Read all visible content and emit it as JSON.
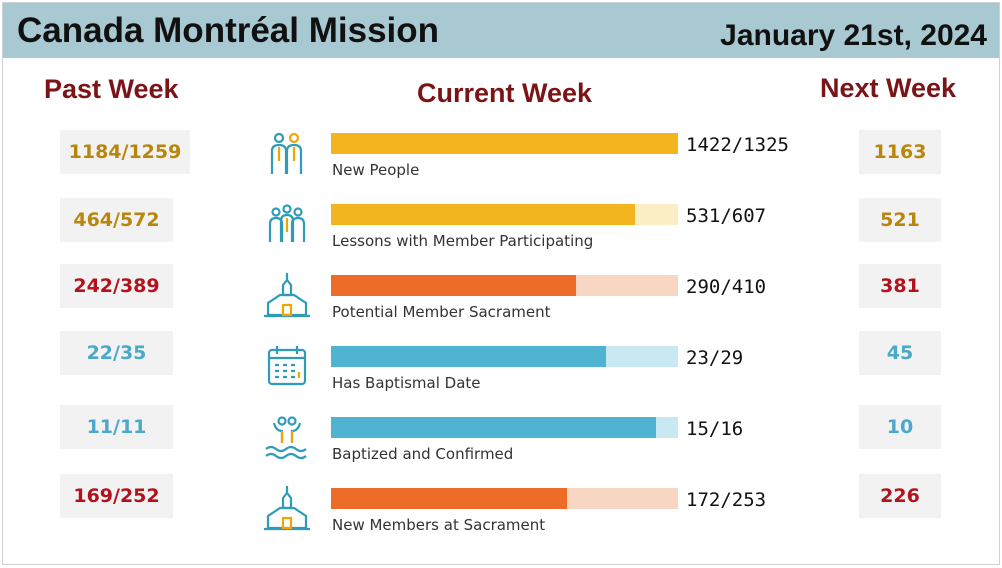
{
  "header": {
    "title": "Canada Montréal Mission",
    "date": "January 21st, 2024"
  },
  "columns": {
    "past": "Past Week",
    "current": "Current Week",
    "next": "Next Week"
  },
  "colors": {
    "gold": "#b8860b",
    "red": "#b3121c",
    "blue": "#4aa8c8",
    "bar_yellow": "#f2b51f",
    "bar_yellow_light": "#fbedc4",
    "bar_orange": "#ec6c28",
    "bar_orange_light": "#f8d6c4",
    "bar_blue": "#4fb3d1",
    "bar_blue_light": "#c8e9f2"
  },
  "rows": [
    {
      "icon": "people-pair-icon",
      "label": "New People",
      "past": "1184/1259",
      "current": "1422/1325",
      "next": "1163",
      "progress": 1.0,
      "theme": "yellow",
      "text_color": "gold"
    },
    {
      "icon": "group-people-icon",
      "label": "Lessons with Member Participating",
      "past": "464/572",
      "current": "531/607",
      "next": "521",
      "progress": 0.875,
      "theme": "yellow",
      "text_color": "gold"
    },
    {
      "icon": "chapel-icon",
      "label": "Potential Member Sacrament",
      "past": "242/389",
      "current": "290/410",
      "next": "381",
      "progress": 0.707,
      "theme": "orange",
      "text_color": "red"
    },
    {
      "icon": "calendar-icon",
      "label": "Has Baptismal Date",
      "past": "22/35",
      "current": "23/29",
      "next": "45",
      "progress": 0.793,
      "theme": "blue",
      "text_color": "blue"
    },
    {
      "icon": "baptism-icon",
      "label": "Baptized and Confirmed",
      "past": "11/11",
      "current": "15/16",
      "next": "10",
      "progress": 0.9375,
      "theme": "blue",
      "text_color": "blue"
    },
    {
      "icon": "chapel-icon",
      "label": "New Members at Sacrament",
      "past": "169/252",
      "current": "172/253",
      "next": "226",
      "progress": 0.68,
      "theme": "orange",
      "text_color": "red"
    }
  ]
}
